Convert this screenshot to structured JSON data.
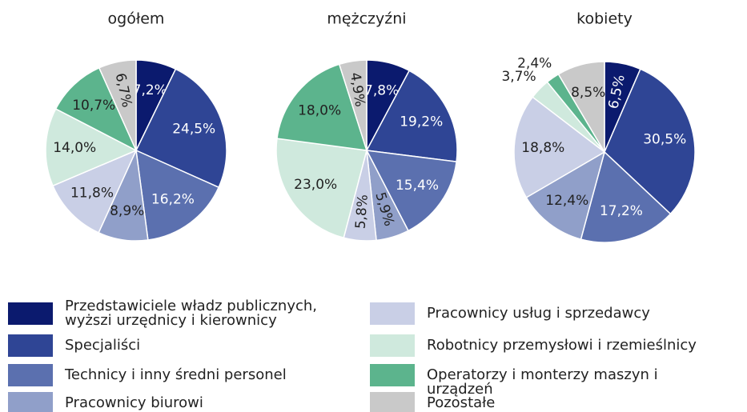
{
  "categories": [
    "Przedstawiciele władz publicznych, wyższi urzędnicy i kierownicy",
    "Specjaliści",
    "Technicy i inny średni personel",
    "Pracownicy biurowi",
    "Pracownicy usług i sprzedawcy",
    "Robotnicy przemysłowi i rzemieślnicy",
    "Operatorzy i monterzy maszyn i urządzeń",
    "Pozostałe"
  ],
  "colors": [
    "#0b1a6e",
    "#2f4595",
    "#5b70af",
    "#909fc9",
    "#c9cfe6",
    "#cfe9dd",
    "#5cb48d",
    "#c9c9c9"
  ],
  "chart_data": [
    {
      "type": "pie",
      "title": "ogółem",
      "values": [
        7.2,
        24.5,
        16.2,
        8.9,
        11.8,
        14.0,
        10.7,
        6.7
      ],
      "value_labels": [
        "7,2%",
        "24,5%",
        "16,2%",
        "8,9%",
        "11,8%",
        "14,0%",
        "10,7%",
        "6,7%"
      ]
    },
    {
      "type": "pie",
      "title": "mężczyźni",
      "values": [
        7.8,
        19.2,
        15.4,
        5.9,
        5.8,
        23.0,
        18.0,
        4.9
      ],
      "value_labels": [
        "7,8%",
        "19,2%",
        "15,4%",
        "5,9%",
        "5,8%",
        "23,0%",
        "18,0%",
        "4,9%"
      ]
    },
    {
      "type": "pie",
      "title": "kobiety",
      "values": [
        6.5,
        30.5,
        17.2,
        12.4,
        18.8,
        3.7,
        2.4,
        8.5
      ],
      "value_labels": [
        "6,5%",
        "30,5%",
        "17,2%",
        "12,4%",
        "18,8%",
        "3,7%",
        "2,4%",
        "8,5%"
      ]
    }
  ]
}
